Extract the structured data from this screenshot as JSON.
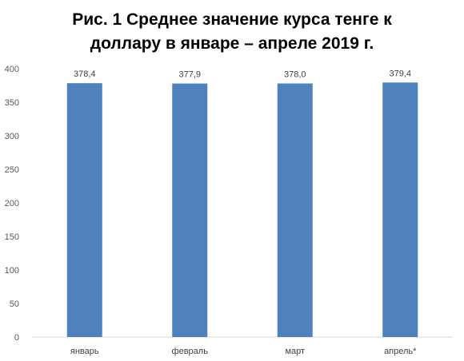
{
  "chart_data": {
    "type": "bar",
    "title_lines": [
      "Рис. 1 Среднее значение курса тенге к",
      "доллару в январе – апреле 2019 г."
    ],
    "categories": [
      "январь",
      "февраль",
      "март",
      "апрель*"
    ],
    "values": [
      378.4,
      377.9,
      378.0,
      379.4
    ],
    "value_labels": [
      "378,4",
      "377,9",
      "378,0",
      "379,4"
    ],
    "y_ticks": [
      "0",
      "50",
      "100",
      "150",
      "200",
      "250",
      "300",
      "350",
      "400"
    ],
    "ylim": [
      0,
      400
    ],
    "grid": false,
    "legend": "none",
    "bar_color": "#4F81BD",
    "axis_color": "#D9D9D9"
  }
}
